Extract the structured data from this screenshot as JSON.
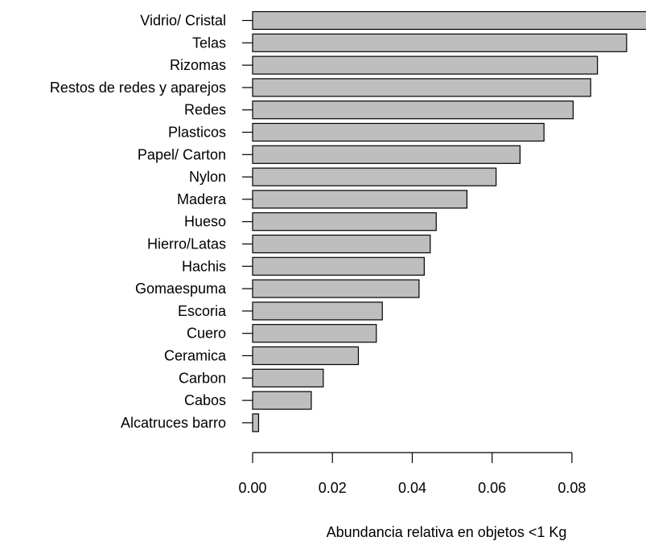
{
  "chart_data": {
    "type": "bar",
    "orientation": "horizontal",
    "categories": [
      "Vidrio/ Cristal",
      "Telas",
      "Rizomas",
      "Restos de redes y aparejos",
      "Redes",
      "Plasticos",
      "Papel/ Carton",
      "Nylon",
      "Madera",
      "Hueso",
      "Hierro/Latas",
      "Hachis",
      "Gomaespuma",
      "Escoria",
      "Cuero",
      "Ceramica",
      "Carbon",
      "Cabos",
      "Alcatruces barro"
    ],
    "values": [
      0.104,
      0.0937,
      0.0864,
      0.0847,
      0.0803,
      0.073,
      0.067,
      0.061,
      0.0537,
      0.046,
      0.0445,
      0.043,
      0.0417,
      0.0325,
      0.031,
      0.0265,
      0.0177,
      0.0147,
      0.0015
    ],
    "xlabel": "Abundancia relativa en objetos <1 Kg",
    "ylabel": "",
    "title": "",
    "xlim": [
      0,
      0.104
    ],
    "x_ticks": [
      "0.00",
      "0.02",
      "0.04",
      "0.06",
      "0.08"
    ],
    "x_tick_values": [
      0,
      0.02,
      0.04,
      0.06,
      0.08
    ],
    "bar_color": "#bebebe",
    "bar_stroke": "#000000",
    "grid": false,
    "legend": "none"
  }
}
